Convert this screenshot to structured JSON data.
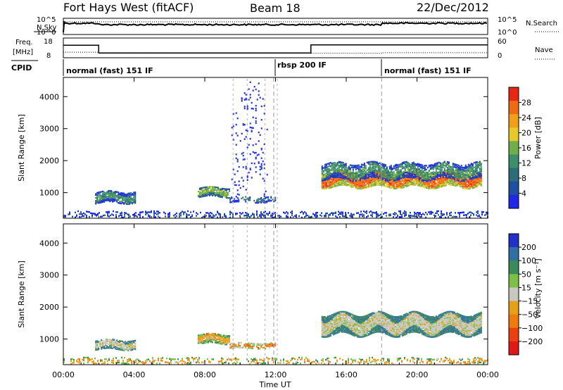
{
  "header": {
    "station": "Fort Hays West (fitACF)",
    "beam": "Beam 18",
    "date": "22/Dec/2012"
  },
  "sky_panel": {
    "left_label": "N.Sky",
    "right_label": "N.Search",
    "ticks": [
      "10^5",
      "10^0"
    ],
    "right_ticks": [
      "10^5",
      "10^0"
    ]
  },
  "freq_panel": {
    "left_label_1": "Freq.",
    "left_label_2": "[MHz]",
    "right_label": "Nave",
    "left_ticks": [
      "18",
      "8"
    ],
    "right_ticks": [
      "60",
      "0"
    ],
    "freq_mhz": [
      {
        "t0": 0,
        "t1": 2.0,
        "value": 15.4
      },
      {
        "t0": 2.0,
        "t1": 14.0,
        "value": 10.8
      },
      {
        "t0": 14.0,
        "t1": 24.0,
        "value": 15.6
      }
    ],
    "nave": [
      {
        "t0": 0,
        "t1": 2.0,
        "value": 16
      },
      {
        "t0": 2.0,
        "t1": 11.9,
        "value": 12
      },
      {
        "t0": 11.9,
        "t1": 18.0,
        "value": 12
      },
      {
        "t0": 18.0,
        "t1": 24.0,
        "value": 14
      }
    ]
  },
  "cpid": {
    "label": "CPID",
    "segments": [
      {
        "t": 0,
        "text": "normal (fast) 151 IF"
      },
      {
        "t": 11.9,
        "text": "rbsp 200 IF"
      },
      {
        "t": 18.0,
        "text": "normal (fast) 151 IF"
      }
    ]
  },
  "colors": {
    "power": [
      "#1e28e6",
      "#1f4fa0",
      "#2f6b78",
      "#3c8f6a",
      "#6fae4a",
      "#e6c82a",
      "#f0a018",
      "#ee6a14",
      "#e62814"
    ],
    "velocity": [
      "#2030c8",
      "#3070a0",
      "#3c8a5a",
      "#7cc048",
      "#c8c8c0",
      "#e6a018",
      "#ee7a10",
      "#ea4010",
      "#e01818"
    ]
  },
  "chart_data": [
    {
      "type": "heatmap",
      "parameter": "power",
      "ylabel": "Slant Range [km]",
      "xlabel": "",
      "xlim": [
        0,
        24
      ],
      "ylim": [
        200,
        4600
      ],
      "yticks": [
        "1000",
        "2000",
        "3000",
        "4000"
      ],
      "colorbar_label": "Power [dB]",
      "colorbar_ticks": [
        "4",
        "8",
        "12",
        "16",
        "20",
        "24",
        "28"
      ],
      "colorbar_range": [
        0,
        32
      ],
      "regions": [
        {
          "t0": 1.8,
          "t1": 4.1,
          "r_center": 880,
          "r_half": 170,
          "level": 3,
          "density": 0.75
        },
        {
          "t0": 7.6,
          "t1": 9.4,
          "r_center": 1050,
          "r_half": 150,
          "level": 4,
          "density": 0.7
        },
        {
          "t0": 9.4,
          "t1": 12.0,
          "r_center": 820,
          "r_half": 90,
          "level": 2,
          "density": 0.35
        },
        {
          "t0": 14.6,
          "t1": 23.6,
          "r_center": 1450,
          "r_half": 240,
          "level": 7,
          "density": 0.85
        },
        {
          "t0": 14.6,
          "t1": 23.6,
          "r_center": 1700,
          "r_half": 250,
          "level": 3,
          "density": 0.6
        },
        {
          "t0": 0.0,
          "t1": 24.0,
          "r_center": 320,
          "r_half": 110,
          "level": 1,
          "density": 0.25
        },
        {
          "t0": 9.5,
          "t1": 11.5,
          "r_center": 2600,
          "r_half": 1600,
          "level": 0,
          "density": 0.05
        }
      ]
    },
    {
      "type": "heatmap",
      "parameter": "velocity",
      "ylabel": "Slant Range [km]",
      "xlabel": "Time UT",
      "xlim": [
        0,
        24
      ],
      "ylim": [
        200,
        4600
      ],
      "yticks": [
        "1000",
        "2000",
        "3000",
        "4000"
      ],
      "xticks": [
        "00:00",
        "04:00",
        "08:00",
        "12:00",
        "16:00",
        "20:00",
        "00:00"
      ],
      "colorbar_label": "Velocity [m s⁻¹]",
      "colorbar_ticks": [
        "200",
        "100",
        "50",
        "15",
        "−15",
        "−50",
        "−100",
        "−200"
      ],
      "regions": [
        {
          "t0": 1.8,
          "t1": 4.1,
          "r_center": 860,
          "r_half": 150,
          "level": 4,
          "density": 0.7
        },
        {
          "t0": 7.6,
          "t1": 9.4,
          "r_center": 1040,
          "r_half": 150,
          "level": 5,
          "density": 0.75
        },
        {
          "t0": 9.4,
          "t1": 12.0,
          "r_center": 820,
          "r_half": 80,
          "level": 6,
          "density": 0.45
        },
        {
          "t0": 14.6,
          "t1": 23.6,
          "r_center": 1500,
          "r_half": 330,
          "level": 4,
          "density": 0.9
        },
        {
          "t0": 0.0,
          "t1": 24.0,
          "r_center": 320,
          "r_half": 110,
          "level": 5,
          "density": 0.25
        }
      ]
    }
  ]
}
